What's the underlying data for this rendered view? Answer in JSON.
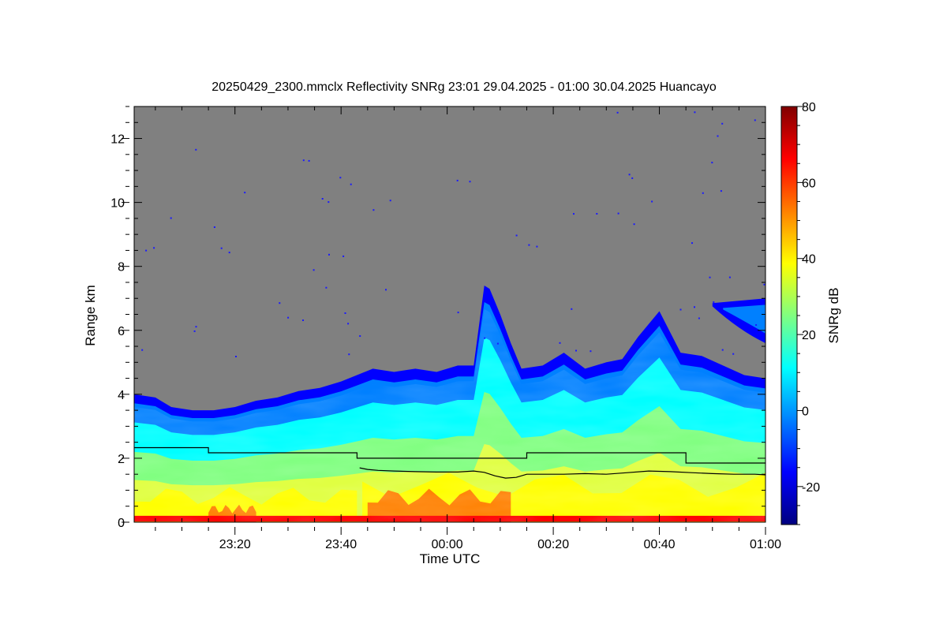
{
  "chart_data": {
    "type": "heatmap",
    "title": "20250429_2300.mmclx Reflectivity SNRg   23:01 29.04.2025 - 01:00 30.04.2025 Huancayo",
    "xlabel": "Time UTC",
    "ylabel": "Range km",
    "colorbar_label": "SNRg dB",
    "x_range_minutes_from_midnight": [
      -59,
      60
    ],
    "ylim": [
      0,
      13
    ],
    "x_ticks": [
      {
        "t": -40,
        "label": "23:20"
      },
      {
        "t": -20,
        "label": "23:40"
      },
      {
        "t": 0,
        "label": "00:00"
      },
      {
        "t": 20,
        "label": "00:20"
      },
      {
        "t": 40,
        "label": "00:40"
      },
      {
        "t": 60,
        "label": "01:00"
      }
    ],
    "y_ticks": [
      0,
      2,
      4,
      6,
      8,
      10,
      12
    ],
    "colorbar_range": [
      -30,
      80
    ],
    "colorbar_ticks": [
      -20,
      0,
      20,
      40,
      60,
      80
    ],
    "colormap": [
      "#000080",
      "#0000ff",
      "#0080ff",
      "#00ffff",
      "#80ff80",
      "#ffff00",
      "#ff8000",
      "#ff0000",
      "#800000"
    ],
    "no_data_color": "#808080",
    "cloud_top_km": [
      [
        -59,
        4.0
      ],
      [
        -55,
        3.9
      ],
      [
        -52,
        3.6
      ],
      [
        -48,
        3.5
      ],
      [
        -44,
        3.5
      ],
      [
        -40,
        3.6
      ],
      [
        -36,
        3.8
      ],
      [
        -32,
        3.9
      ],
      [
        -28,
        4.1
      ],
      [
        -24,
        4.2
      ],
      [
        -20,
        4.4
      ],
      [
        -17,
        4.6
      ],
      [
        -14,
        4.8
      ],
      [
        -10,
        4.7
      ],
      [
        -6,
        4.8
      ],
      [
        -2,
        4.7
      ],
      [
        2,
        4.9
      ],
      [
        5,
        4.9
      ],
      [
        7,
        7.4
      ],
      [
        8,
        7.3
      ],
      [
        10,
        6.5
      ],
      [
        12,
        5.6
      ],
      [
        14,
        4.8
      ],
      [
        18,
        4.9
      ],
      [
        22,
        5.3
      ],
      [
        26,
        4.8
      ],
      [
        30,
        5.0
      ],
      [
        33,
        5.1
      ],
      [
        36,
        5.8
      ],
      [
        40,
        6.6
      ],
      [
        44,
        5.3
      ],
      [
        48,
        5.2
      ],
      [
        52,
        4.9
      ],
      [
        56,
        4.6
      ],
      [
        60,
        4.5
      ]
    ],
    "upper_cloud": {
      "t_start": 50,
      "t_end": 60,
      "base_km": 5.6,
      "top_km": 7.0
    },
    "series": [
      {
        "name": "step line",
        "x": [
          -59,
          -45,
          -45,
          -17,
          -17,
          15,
          15,
          45,
          45,
          60
        ],
        "y": [
          2.33,
          2.33,
          2.17,
          2.17,
          2.0,
          2.0,
          2.17,
          2.17,
          1.85,
          1.85
        ]
      },
      {
        "name": "lower line",
        "x": [
          -16.5,
          -15,
          -13,
          -10,
          -6,
          -2,
          2,
          5,
          7,
          9,
          11,
          13,
          15,
          18,
          22,
          26,
          30,
          34,
          38,
          42,
          46,
          50,
          54,
          58,
          60
        ],
        "y": [
          1.7,
          1.65,
          1.62,
          1.6,
          1.58,
          1.57,
          1.57,
          1.6,
          1.56,
          1.45,
          1.38,
          1.4,
          1.5,
          1.5,
          1.5,
          1.52,
          1.5,
          1.55,
          1.6,
          1.58,
          1.55,
          1.52,
          1.5,
          1.5,
          1.48
        ]
      }
    ]
  }
}
